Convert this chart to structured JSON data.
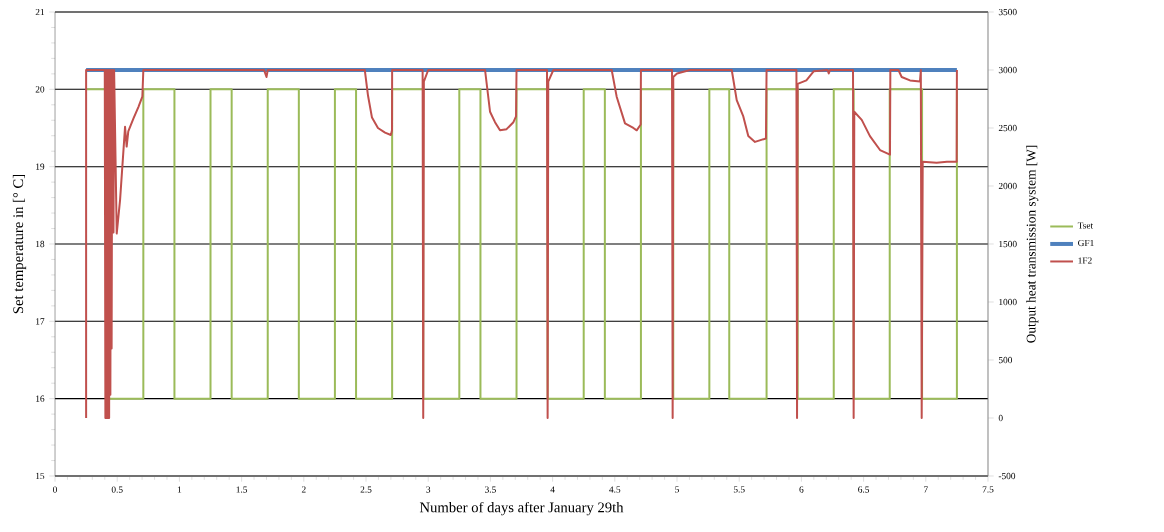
{
  "chart_data": {
    "type": "line",
    "xlabel": "Number of days after January 29th",
    "ylabel": "Set temperature in [° C]",
    "y2label": "Output heat transmission system [W]",
    "xlim": [
      0,
      7.5
    ],
    "xticks": [
      0,
      0.5,
      1,
      1.5,
      2,
      2.5,
      3,
      3.5,
      4,
      4.5,
      5,
      5.5,
      6,
      6.5,
      7,
      7.5
    ],
    "ylim": [
      15,
      21
    ],
    "yticks": [
      15,
      16,
      17,
      18,
      19,
      20,
      21
    ],
    "y2lim": [
      -500,
      3500
    ],
    "y2ticks": [
      -500,
      0,
      500,
      1000,
      1500,
      2000,
      2500,
      3000,
      3500
    ],
    "grid": "y",
    "legend": "right",
    "series": [
      {
        "name": "Tset",
        "color": "#9bbb59",
        "axis": "y",
        "x": [
          0.25,
          0.42,
          0.42,
          0.71,
          0.71,
          0.96,
          0.96,
          1.25,
          1.25,
          1.42,
          1.42,
          1.71,
          1.71,
          1.96,
          1.96,
          2.25,
          2.25,
          2.42,
          2.42,
          2.71,
          2.71,
          2.96,
          2.96,
          3.25,
          3.25,
          3.42,
          3.42,
          3.71,
          3.71,
          3.96,
          3.96,
          4.25,
          4.25,
          4.42,
          4.42,
          4.71,
          4.71,
          4.97,
          4.97,
          5.26,
          5.26,
          5.42,
          5.42,
          5.72,
          5.72,
          5.97,
          5.97,
          6.26,
          6.26,
          6.42,
          6.42,
          6.71,
          6.71,
          6.97,
          6.97,
          7.25,
          7.25
        ],
        "values": [
          20,
          20,
          16,
          16,
          20,
          20,
          16,
          16,
          20,
          20,
          16,
          16,
          20,
          20,
          16,
          16,
          20,
          20,
          16,
          16,
          20,
          20,
          16,
          16,
          20,
          20,
          16,
          16,
          20,
          20,
          16,
          16,
          20,
          20,
          16,
          16,
          20,
          20,
          16,
          16,
          20,
          20,
          16,
          16,
          20,
          20,
          16,
          16,
          20,
          20,
          16,
          16,
          20,
          20,
          16,
          16,
          20
        ]
      },
      {
        "name": "GF1",
        "color": "#4f81bd",
        "axis": "y2",
        "x": [
          0.25,
          7.25
        ],
        "values": [
          3000,
          3000
        ]
      },
      {
        "name": "1F2",
        "color": "#c0504d",
        "axis": "y2",
        "x": [
          0.25,
          0.25,
          0.4,
          0.405,
          0.41,
          0.415,
          0.42,
          0.425,
          0.43,
          0.435,
          0.44,
          0.445,
          0.45,
          0.455,
          0.46,
          0.47,
          0.475,
          0.496,
          0.523,
          0.563,
          0.576,
          0.589,
          0.63,
          0.67,
          0.702,
          0.71,
          1.68,
          1.7,
          1.71,
          2.49,
          2.516,
          2.548,
          2.596,
          2.653,
          2.7,
          2.709,
          2.71,
          2.955,
          2.96,
          2.965,
          3.0,
          3.457,
          3.497,
          3.537,
          3.577,
          3.63,
          3.685,
          3.706,
          3.71,
          3.955,
          3.96,
          3.965,
          4.006,
          4.475,
          4.515,
          4.582,
          4.649,
          4.676,
          4.708,
          4.71,
          4.96,
          4.965,
          4.97,
          5.0,
          5.105,
          5.44,
          5.48,
          5.533,
          5.573,
          5.627,
          5.715,
          5.72,
          5.96,
          5.965,
          5.97,
          6.04,
          6.1,
          6.21,
          6.22,
          6.23,
          6.415,
          6.42,
          6.425,
          6.485,
          6.551,
          6.632,
          6.712,
          6.715,
          6.78,
          6.806,
          6.873,
          6.953,
          6.96,
          6.967,
          6.975,
          7.087,
          7.17,
          7.248,
          7.25
        ],
        "values": [
          0,
          3000,
          3000,
          0,
          3000,
          0,
          3000,
          0,
          3000,
          0,
          3000,
          200,
          3000,
          600,
          3000,
          1600,
          3000,
          1590,
          1880,
          2510,
          2340,
          2470,
          2580,
          2680,
          2770,
          3000,
          3000,
          2940,
          3000,
          3000,
          2780,
          2590,
          2500,
          2460,
          2440,
          2480,
          3000,
          3000,
          0,
          2900,
          3000,
          3000,
          2640,
          2550,
          2480,
          2490,
          2550,
          2600,
          3000,
          3000,
          0,
          2900,
          3000,
          3000,
          2770,
          2540,
          2500,
          2480,
          2530,
          3000,
          3000,
          0,
          2940,
          2970,
          3000,
          3000,
          2740,
          2600,
          2430,
          2380,
          2410,
          3000,
          3000,
          0,
          2880,
          2910,
          2990,
          3000,
          2970,
          3000,
          3000,
          0,
          2640,
          2570,
          2430,
          2310,
          2270,
          3000,
          3000,
          2940,
          2910,
          2900,
          3000,
          0,
          2210,
          2200,
          2210,
          2210,
          3000
        ]
      }
    ]
  }
}
